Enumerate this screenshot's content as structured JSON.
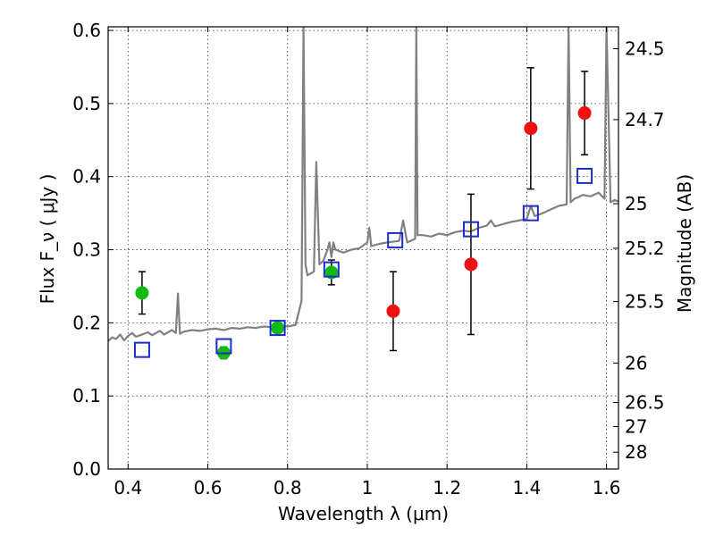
{
  "chart_data": {
    "type": "scatter",
    "xlabel": "Wavelength  λ (μm)",
    "ylabel": "Flux  F_ν  ( μJy )",
    "ylabel_right": "Magnitude (AB)",
    "xlim": [
      0.35,
      1.63
    ],
    "ylim": [
      0.0,
      0.605
    ],
    "grid": true,
    "x_ticks": [
      0.4,
      0.6,
      0.8,
      1.0,
      1.2,
      1.4,
      1.6
    ],
    "x_tick_labels": [
      "0.4",
      "0.6",
      "0.8",
      "1",
      "1.2",
      "1.4",
      "1.6"
    ],
    "y_ticks": [
      0.0,
      0.1,
      0.2,
      0.3,
      0.4,
      0.5,
      0.6
    ],
    "y_tick_labels": [
      "0.0",
      "0.1",
      "0.2",
      "0.3",
      "0.4",
      "0.5",
      "0.6"
    ],
    "right_ticks": [
      {
        "flux": 0.575,
        "label": "24.5"
      },
      {
        "flux": 0.478,
        "label": "24.7"
      },
      {
        "flux": 0.363,
        "label": "25"
      },
      {
        "flux": 0.302,
        "label": "25.2"
      },
      {
        "flux": 0.229,
        "label": "25.5"
      },
      {
        "flux": 0.145,
        "label": "26"
      },
      {
        "flux": 0.091,
        "label": "26.5"
      },
      {
        "flux": 0.058,
        "label": "27"
      },
      {
        "flux": 0.023,
        "label": "28"
      }
    ],
    "series": [
      {
        "marker": "circle",
        "color": "#11bb11",
        "points": [
          {
            "x": 0.435,
            "y": 0.241,
            "err": 0.029
          },
          {
            "x": 0.64,
            "y": 0.159,
            "err": 0.008
          },
          {
            "x": 0.775,
            "y": 0.193,
            "err": 0.01
          },
          {
            "x": 0.91,
            "y": 0.269,
            "err": 0.017
          }
        ]
      },
      {
        "marker": "circle",
        "color": "#ee1111",
        "points": [
          {
            "x": 1.065,
            "y": 0.216,
            "err": 0.054
          },
          {
            "x": 1.26,
            "y": 0.28,
            "err": 0.096
          },
          {
            "x": 1.41,
            "y": 0.466,
            "err": 0.083
          },
          {
            "x": 1.545,
            "y": 0.487,
            "err": 0.057
          }
        ]
      },
      {
        "marker": "square-open",
        "color": "#1a2bd0",
        "points": [
          {
            "x": 0.435,
            "y": 0.163
          },
          {
            "x": 0.64,
            "y": 0.168
          },
          {
            "x": 0.775,
            "y": 0.193
          },
          {
            "x": 0.91,
            "y": 0.273
          },
          {
            "x": 1.07,
            "y": 0.313
          },
          {
            "x": 1.26,
            "y": 0.328
          },
          {
            "x": 1.41,
            "y": 0.35
          },
          {
            "x": 1.545,
            "y": 0.401
          }
        ]
      },
      {
        "marker": "line",
        "color": "#808080",
        "x": [
          0.35,
          0.36,
          0.37,
          0.38,
          0.39,
          0.4,
          0.41,
          0.42,
          0.43,
          0.44,
          0.45,
          0.46,
          0.47,
          0.48,
          0.49,
          0.5,
          0.51,
          0.52,
          0.525,
          0.53,
          0.54,
          0.56,
          0.58,
          0.6,
          0.62,
          0.64,
          0.66,
          0.68,
          0.7,
          0.72,
          0.74,
          0.76,
          0.78,
          0.8,
          0.82,
          0.835,
          0.84,
          0.845,
          0.85,
          0.86,
          0.866,
          0.872,
          0.88,
          0.89,
          0.9,
          0.905,
          0.91,
          0.915,
          0.92,
          0.94,
          0.96,
          0.98,
          1.0,
          1.005,
          1.01,
          1.03,
          1.05,
          1.08,
          1.09,
          1.1,
          1.12,
          1.123,
          1.126,
          1.14,
          1.16,
          1.18,
          1.2,
          1.22,
          1.24,
          1.26,
          1.28,
          1.3,
          1.31,
          1.32,
          1.34,
          1.36,
          1.38,
          1.4,
          1.41,
          1.42,
          1.44,
          1.46,
          1.48,
          1.5,
          1.505,
          1.51,
          1.52,
          1.53,
          1.54,
          1.56,
          1.58,
          1.595,
          1.6,
          1.61,
          1.62,
          1.63
        ],
        "y": [
          0.175,
          0.18,
          0.178,
          0.184,
          0.176,
          0.182,
          0.186,
          0.181,
          0.183,
          0.185,
          0.187,
          0.183,
          0.186,
          0.189,
          0.184,
          0.187,
          0.19,
          0.186,
          0.24,
          0.185,
          0.188,
          0.19,
          0.189,
          0.191,
          0.192,
          0.19,
          0.193,
          0.192,
          0.194,
          0.193,
          0.195,
          0.194,
          0.196,
          0.195,
          0.197,
          0.23,
          0.605,
          0.28,
          0.265,
          0.268,
          0.27,
          0.42,
          0.28,
          0.285,
          0.3,
          0.31,
          0.29,
          0.31,
          0.3,
          0.296,
          0.3,
          0.302,
          0.31,
          0.33,
          0.305,
          0.308,
          0.31,
          0.312,
          0.34,
          0.31,
          0.315,
          0.605,
          0.32,
          0.32,
          0.318,
          0.322,
          0.32,
          0.324,
          0.326,
          0.325,
          0.33,
          0.333,
          0.34,
          0.332,
          0.335,
          0.338,
          0.34,
          0.342,
          0.36,
          0.346,
          0.35,
          0.355,
          0.36,
          0.362,
          0.605,
          0.365,
          0.37,
          0.372,
          0.375,
          0.373,
          0.378,
          0.37,
          0.605,
          0.365,
          0.368,
          0.366
        ]
      }
    ]
  }
}
